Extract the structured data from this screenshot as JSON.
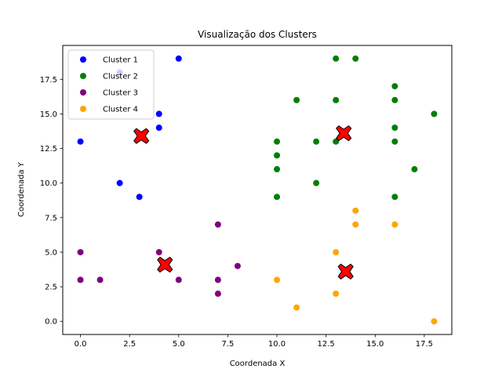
{
  "chart_data": {
    "type": "scatter",
    "title": "Visualização dos Clusters",
    "xlabel": "Coordenada X",
    "ylabel": "Coordenada Y",
    "xlim": [
      -0.9,
      18.9
    ],
    "ylim": [
      -0.95,
      19.95
    ],
    "xticks": [
      0.0,
      2.5,
      5.0,
      7.5,
      10.0,
      12.5,
      15.0,
      17.5
    ],
    "xtick_labels": [
      "0.0",
      "2.5",
      "5.0",
      "7.5",
      "10.0",
      "12.5",
      "15.0",
      "17.5"
    ],
    "yticks": [
      0.0,
      2.5,
      5.0,
      7.5,
      10.0,
      12.5,
      15.0,
      17.5
    ],
    "ytick_labels": [
      "0.0",
      "2.5",
      "5.0",
      "7.5",
      "10.0",
      "12.5",
      "15.0",
      "17.5"
    ],
    "grid": false,
    "legend_position": "top-left",
    "series": [
      {
        "name": "Cluster 1",
        "color": "#0000ff",
        "points": [
          [
            0,
            13
          ],
          [
            2,
            18
          ],
          [
            5,
            19
          ],
          [
            4,
            15
          ],
          [
            4,
            14
          ],
          [
            2,
            10
          ],
          [
            3,
            9
          ]
        ]
      },
      {
        "name": "Cluster 2",
        "color": "#008000",
        "points": [
          [
            13,
            19
          ],
          [
            14,
            19
          ],
          [
            16,
            17
          ],
          [
            11,
            16
          ],
          [
            13,
            16
          ],
          [
            16,
            16
          ],
          [
            18,
            15
          ],
          [
            16,
            14
          ],
          [
            10,
            13
          ],
          [
            12,
            13
          ],
          [
            13,
            13
          ],
          [
            16,
            13
          ],
          [
            10,
            12
          ],
          [
            10,
            11
          ],
          [
            17,
            11
          ],
          [
            12,
            10
          ],
          [
            10,
            9
          ],
          [
            16,
            9
          ]
        ]
      },
      {
        "name": "Cluster 3",
        "color": "#800080",
        "points": [
          [
            7,
            7
          ],
          [
            0,
            5
          ],
          [
            4,
            5
          ],
          [
            8,
            4
          ],
          [
            0,
            3
          ],
          [
            1,
            3
          ],
          [
            5,
            3
          ],
          [
            7,
            3
          ],
          [
            7,
            2
          ]
        ]
      },
      {
        "name": "Cluster 4",
        "color": "#ffa500",
        "points": [
          [
            14,
            8
          ],
          [
            14,
            7
          ],
          [
            16,
            7
          ],
          [
            13,
            5
          ],
          [
            10,
            3
          ],
          [
            13,
            2
          ],
          [
            11,
            1
          ],
          [
            18,
            0
          ]
        ]
      }
    ],
    "centroids": {
      "color": "#ff0000",
      "marker": "X",
      "points": [
        [
          3.1,
          13.4
        ],
        [
          13.4,
          13.6
        ],
        [
          4.3,
          4.1
        ],
        [
          13.5,
          3.6
        ]
      ]
    }
  }
}
